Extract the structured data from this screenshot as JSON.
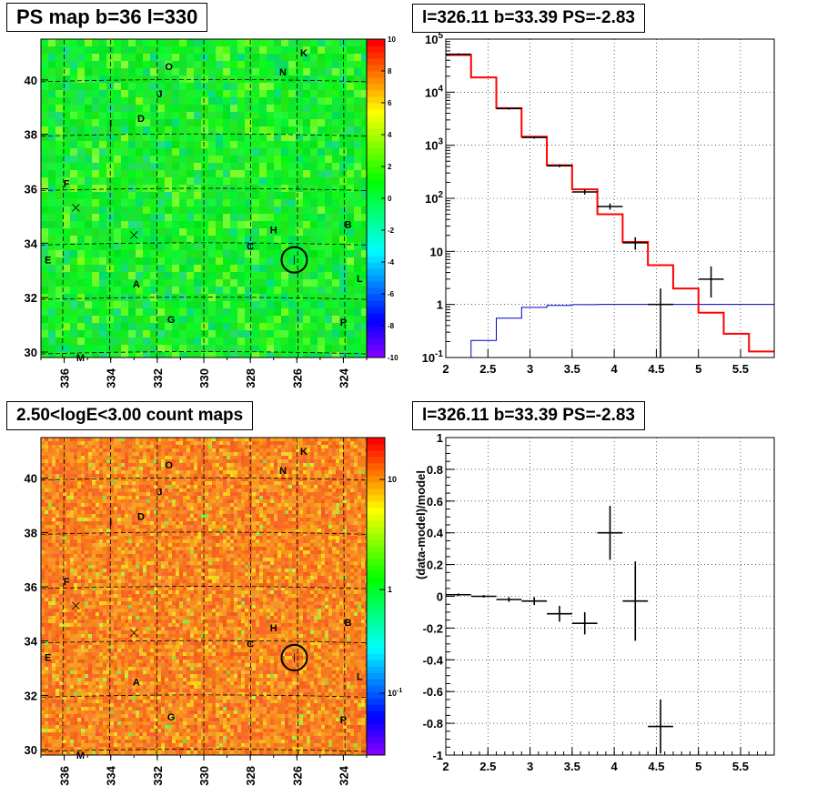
{
  "panels": {
    "tl_title": "PS map b=36 l=330",
    "tr_title": "l=326.11 b=33.39 PS=-2.83",
    "bl_title": "2.50<logE<3.00 count maps",
    "br_title": "l=326.11 b=33.39 PS=-2.83"
  },
  "colors": {
    "data": "#000000",
    "model": "#ff0000",
    "ps_model": "#0000cc"
  },
  "chart_data": [
    {
      "type": "heatmap",
      "title": "PS map b=36 l=330",
      "x_ticks": [
        "336",
        "334",
        "332",
        "330",
        "328",
        "326",
        "324"
      ],
      "y_ticks": [
        "30",
        "32",
        "34",
        "36",
        "38",
        "40"
      ],
      "xlim": [
        337,
        323
      ],
      "ylim": [
        29.8,
        41.5
      ],
      "colorbar_ticks": [
        "10",
        "8",
        "6",
        "4",
        "2",
        "0",
        "-2",
        "-4",
        "-6",
        "-8",
        "-10"
      ],
      "colorbar_range": [
        -10,
        10
      ],
      "source_labels": [
        {
          "t": "O",
          "l": 331.5,
          "b": 40.5
        },
        {
          "t": "K",
          "l": 325.7,
          "b": 41.0
        },
        {
          "t": "N",
          "l": 326.6,
          "b": 40.3
        },
        {
          "t": "J",
          "l": 331.9,
          "b": 39.5
        },
        {
          "t": "D",
          "l": 332.7,
          "b": 38.6
        },
        {
          "t": "I",
          "l": 334.0,
          "b": 38.4
        },
        {
          "t": "F",
          "l": 335.9,
          "b": 36.2
        },
        {
          "t": "H",
          "l": 327.0,
          "b": 34.5
        },
        {
          "t": "B",
          "l": 323.8,
          "b": 34.7
        },
        {
          "t": "C",
          "l": 328.0,
          "b": 33.9
        },
        {
          "t": "E",
          "l": 336.7,
          "b": 33.4
        },
        {
          "t": "A",
          "l": 332.9,
          "b": 32.5
        },
        {
          "t": "L",
          "l": 323.3,
          "b": 32.7
        },
        {
          "t": "G",
          "l": 331.4,
          "b": 31.2
        },
        {
          "t": "P",
          "l": 324.0,
          "b": 31.1
        },
        {
          "t": "M",
          "l": 335.3,
          "b": 29.8
        }
      ],
      "marker": {
        "l": 326.11,
        "b": 33.39
      }
    },
    {
      "type": "line",
      "title": "l=326.11 b=33.39 PS=-2.83",
      "xlim": [
        2,
        5.9
      ],
      "ylim": [
        0.1,
        100000
      ],
      "yscale": "log",
      "x_ticks": [
        "2",
        "2.5",
        "3",
        "3.5",
        "4",
        "4.5",
        "5",
        "5.5"
      ],
      "y_ticks": [
        "10^-1",
        "1",
        "10",
        "10^2",
        "10^3",
        "10^4",
        "10^5"
      ],
      "grid": true,
      "bin_edges": [
        2.0,
        2.3,
        2.6,
        2.9,
        3.2,
        3.5,
        3.8,
        4.1,
        4.4,
        4.7,
        5.0,
        5.3,
        5.6,
        5.9
      ],
      "series": [
        {
          "values": [
            50000,
            19000,
            5000,
            1450,
            420,
            148,
            50,
            15,
            5.5,
            2.0,
            0.7,
            0.28,
            0.13
          ]
        },
        {
          "values": [
            0.08,
            0.21,
            0.55,
            0.88,
            0.96,
            0.99,
            1.0,
            1.0,
            1.0,
            1.0,
            1.0,
            1.0,
            1.0
          ]
        }
      ],
      "points": [
        {
          "x": 2.15,
          "y": 52000,
          "xerr": 0.15,
          "ylo": 50000,
          "yhi": 54000
        },
        {
          "x": 2.75,
          "y": 4900,
          "xerr": 0.15,
          "ylo": 4700,
          "yhi": 5100
        },
        {
          "x": 3.05,
          "y": 1400,
          "xerr": 0.15,
          "ylo": 1330,
          "yhi": 1470
        },
        {
          "x": 3.35,
          "y": 410,
          "xerr": 0.15,
          "ylo": 385,
          "yhi": 435
        },
        {
          "x": 3.65,
          "y": 132,
          "xerr": 0.15,
          "ylo": 118,
          "yhi": 146
        },
        {
          "x": 3.95,
          "y": 70,
          "xerr": 0.15,
          "ylo": 61,
          "yhi": 80
        },
        {
          "x": 4.25,
          "y": 14.5,
          "xerr": 0.15,
          "ylo": 10.8,
          "yhi": 18.5
        },
        {
          "x": 4.55,
          "y": 1.0,
          "xerr": 0.15,
          "ylo": 0.1,
          "yhi": 2.0
        },
        {
          "x": 5.15,
          "y": 3.0,
          "xerr": 0.15,
          "ylo": 1.35,
          "yhi": 5.2
        }
      ]
    },
    {
      "type": "scatter",
      "title": "l=326.11 b=33.39 PS=-2.83",
      "ylabel": "(data-model)/model",
      "xlim": [
        2,
        5.9
      ],
      "ylim": [
        -1,
        1
      ],
      "x_ticks": [
        "2",
        "2.5",
        "3",
        "3.5",
        "4",
        "4.5",
        "5",
        "5.5"
      ],
      "y_ticks": [
        "-1",
        "-0.8",
        "-0.6",
        "-0.4",
        "-0.2",
        "0",
        "0.2",
        "0.4",
        "0.6",
        "0.8",
        "1"
      ],
      "grid": true,
      "points": [
        {
          "x": 2.15,
          "y": 0.01,
          "xerr": 0.15,
          "yerr": 0.008
        },
        {
          "x": 2.45,
          "y": 0.0,
          "xerr": 0.15,
          "yerr": 0.008
        },
        {
          "x": 2.75,
          "y": -0.02,
          "xerr": 0.15,
          "yerr": 0.015
        },
        {
          "x": 3.05,
          "y": -0.03,
          "xerr": 0.15,
          "yerr": 0.025
        },
        {
          "x": 3.35,
          "y": -0.11,
          "xerr": 0.15,
          "yerr": 0.05
        },
        {
          "x": 3.65,
          "y": -0.17,
          "xerr": 0.15,
          "yerr": 0.07
        },
        {
          "x": 3.95,
          "y": 0.4,
          "xerr": 0.15,
          "yerr": 0.17
        },
        {
          "x": 4.25,
          "y": -0.03,
          "xerr": 0.15,
          "yerr": 0.25
        },
        {
          "x": 4.55,
          "y": -0.82,
          "xerr": 0.15,
          "yerr": 0.17
        }
      ]
    },
    {
      "type": "heatmap",
      "title": "2.50<logE<3.00 count maps",
      "x_ticks": [
        "336",
        "334",
        "332",
        "330",
        "328",
        "326",
        "324"
      ],
      "y_ticks": [
        "30",
        "32",
        "34",
        "36",
        "38",
        "40"
      ],
      "xlim": [
        337,
        323
      ],
      "ylim": [
        29.8,
        41.5
      ],
      "colorbar_ticks": [
        "10",
        "1",
        "10^-1"
      ],
      "colorbar_scale": "log",
      "source_labels": [
        {
          "t": "O",
          "l": 331.5,
          "b": 40.5
        },
        {
          "t": "K",
          "l": 325.7,
          "b": 41.0
        },
        {
          "t": "N",
          "l": 326.6,
          "b": 40.3
        },
        {
          "t": "J",
          "l": 331.9,
          "b": 39.5
        },
        {
          "t": "D",
          "l": 332.7,
          "b": 38.6
        },
        {
          "t": "I",
          "l": 334.0,
          "b": 38.4
        },
        {
          "t": "F",
          "l": 335.9,
          "b": 36.2
        },
        {
          "t": "H",
          "l": 327.0,
          "b": 34.5
        },
        {
          "t": "B",
          "l": 323.8,
          "b": 34.7
        },
        {
          "t": "C",
          "l": 328.0,
          "b": 33.9
        },
        {
          "t": "E",
          "l": 336.7,
          "b": 33.4
        },
        {
          "t": "A",
          "l": 332.9,
          "b": 32.5
        },
        {
          "t": "L",
          "l": 323.3,
          "b": 32.7
        },
        {
          "t": "G",
          "l": 331.4,
          "b": 31.2
        },
        {
          "t": "P",
          "l": 324.0,
          "b": 31.1
        },
        {
          "t": "M",
          "l": 335.3,
          "b": 29.8
        }
      ],
      "marker": {
        "l": 326.11,
        "b": 33.39
      }
    }
  ]
}
